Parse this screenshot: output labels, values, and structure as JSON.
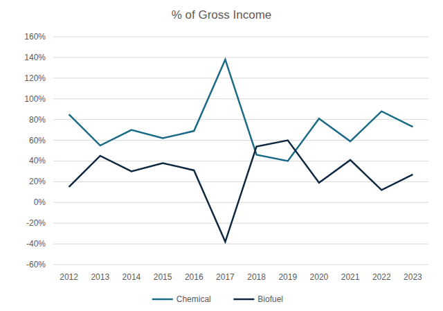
{
  "chart_data": {
    "type": "line",
    "title": "% of Gross Income",
    "categories": [
      "2012",
      "2013",
      "2014",
      "2015",
      "2016",
      "2017",
      "2018",
      "2019",
      "2020",
      "2021",
      "2022",
      "2023"
    ],
    "series": [
      {
        "name": "Chemical",
        "color": "#1b6a85",
        "values": [
          85,
          55,
          70,
          62,
          69,
          138,
          46,
          40,
          81,
          59,
          88,
          73
        ]
      },
      {
        "name": "Biofuel",
        "color": "#0e2841",
        "values": [
          15,
          45,
          30,
          38,
          31,
          -38,
          54,
          60,
          19,
          41,
          12,
          27
        ]
      }
    ],
    "ylim": [
      -60,
      160
    ],
    "yticks": [
      {
        "value": -60,
        "label": "-60%"
      },
      {
        "value": -40,
        "label": "-40%"
      },
      {
        "value": -20,
        "label": "-20%"
      },
      {
        "value": 0,
        "label": "0%"
      },
      {
        "value": 20,
        "label": "20%"
      },
      {
        "value": 40,
        "label": "40%"
      },
      {
        "value": 60,
        "label": "60%"
      },
      {
        "value": 80,
        "label": "80%"
      },
      {
        "value": 100,
        "label": "100%"
      },
      {
        "value": 120,
        "label": "120%"
      },
      {
        "value": 140,
        "label": "140%"
      },
      {
        "value": 160,
        "label": "160%"
      }
    ],
    "grid": true,
    "legend": "bottom"
  }
}
